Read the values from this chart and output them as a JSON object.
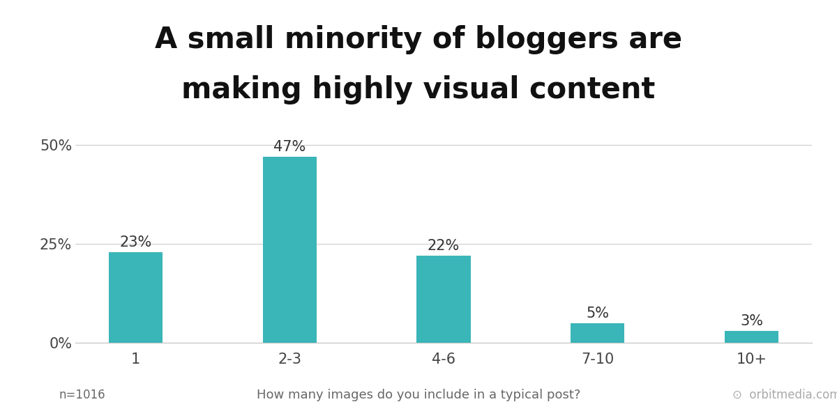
{
  "title_line1": "A small minority of bloggers are",
  "title_line2": "making highly visual content",
  "categories": [
    "1",
    "2-3",
    "4-6",
    "7-10",
    "10+"
  ],
  "values": [
    23,
    47,
    22,
    5,
    3
  ],
  "bar_color": "#3ab5b8",
  "bar_labels": [
    "23%",
    "47%",
    "22%",
    "5%",
    "3%"
  ],
  "yticks": [
    0,
    25,
    50
  ],
  "ytick_labels": [
    "0%",
    "25%",
    "50%"
  ],
  "ylim": [
    0,
    55
  ],
  "xlabel": "How many images do you include in a typical post?",
  "footnote": "n=1016",
  "watermark": "orbitmedia.com",
  "title_fontsize": 30,
  "label_fontsize": 15,
  "tick_fontsize": 15,
  "xlabel_fontsize": 13,
  "footnote_fontsize": 12,
  "background_color": "#ffffff",
  "grid_color": "#cccccc",
  "bar_width": 0.35
}
